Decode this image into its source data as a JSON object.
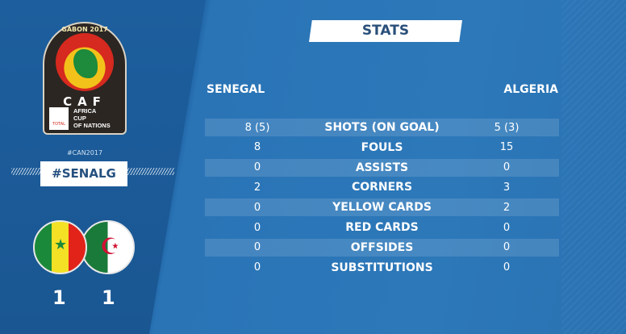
{
  "logo": {
    "top": "GABON 2017",
    "brand": "CAF",
    "lines": [
      "AFRICA",
      "CUP",
      "OF NATIONS"
    ],
    "sponsor": "TOTAL"
  },
  "hashtags": {
    "small": "#CAN2017",
    "main": "#SENALG"
  },
  "teams": {
    "home": "SENEGAL",
    "away": "ALGERIA",
    "home_score": "1",
    "away_score": "1"
  },
  "title": "STATS",
  "stats": [
    {
      "label": "SHOTS (ON GOAL)",
      "home": "8 (5)",
      "away": "5 (3)"
    },
    {
      "label": "FOULS",
      "home": "8",
      "away": "15"
    },
    {
      "label": "ASSISTS",
      "home": "0",
      "away": "0"
    },
    {
      "label": "CORNERS",
      "home": "2",
      "away": "3"
    },
    {
      "label": "YELLOW CARDS",
      "home": "0",
      "away": "2"
    },
    {
      "label": "RED CARDS",
      "home": "0",
      "away": "0"
    },
    {
      "label": "OFFSIDES",
      "home": "0",
      "away": "0"
    },
    {
      "label": "SUBSTITUTIONS",
      "home": "0",
      "away": "0"
    }
  ]
}
